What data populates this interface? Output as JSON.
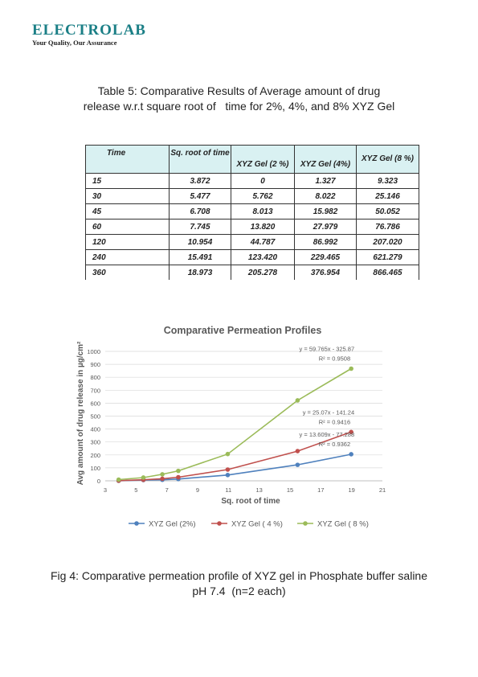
{
  "header": {
    "logo_text": "ELECTROLAB",
    "logo_tagline": "Your Quality, Our Assurance"
  },
  "table_caption": {
    "line1": "Table 5: Comparative Results of Average amount of drug",
    "line2": "release w.r.t square root of   time for 2%, 4%, and 8% XYZ Gel"
  },
  "table": {
    "headers": [
      "Time",
      "Sq. root of time",
      "XYZ Gel (2 %)",
      "XYZ Gel (4%)",
      "XYZ Gel (8 %)"
    ],
    "rows": [
      [
        "15",
        "3.872",
        "0",
        "1.327",
        "9.323"
      ],
      [
        "30",
        "5.477",
        "5.762",
        "8.022",
        "25.146"
      ],
      [
        "45",
        "6.708",
        "8.013",
        "15.982",
        "50.052"
      ],
      [
        "60",
        "7.745",
        "13.820",
        "27.979",
        "76.786"
      ],
      [
        "120",
        "10.954",
        "44.787",
        "86.992",
        "207.020"
      ],
      [
        "240",
        "15.491",
        "123.420",
        "229.465",
        "621.279"
      ],
      [
        "360",
        "18.973",
        "205.278",
        "376.954",
        "866.465"
      ]
    ]
  },
  "chart_data": {
    "type": "line",
    "title": "Comparative Permeation Profiles",
    "xlabel": "Sq. root of time",
    "ylabel": "Avg amount of drug release in µg/cm²",
    "xlim": [
      3,
      21
    ],
    "ylim": [
      0,
      1000
    ],
    "x_ticks": [
      3,
      5,
      7,
      9,
      11,
      13,
      15,
      17,
      19,
      21
    ],
    "y_ticks": [
      0,
      100,
      200,
      300,
      400,
      500,
      600,
      700,
      800,
      900,
      1000
    ],
    "grid": "horizontal",
    "legend_position": "bottom",
    "x": [
      3.872,
      5.477,
      6.708,
      7.745,
      10.954,
      15.491,
      18.973
    ],
    "series": [
      {
        "name": "XYZ Gel (2%)",
        "color": "#4f81bd",
        "values": [
          0,
          5.762,
          8.013,
          13.82,
          44.787,
          123.42,
          205.278
        ],
        "equation": "y = 13.609x - 77.288",
        "r2": "R² = 0.9362"
      },
      {
        "name": "XYZ Gel ( 4 %)",
        "color": "#c0504d",
        "values": [
          1.327,
          8.022,
          15.982,
          27.979,
          86.992,
          229.465,
          376.954
        ],
        "equation": "y = 25.07x - 141.24",
        "r2": "R² = 0.9416"
      },
      {
        "name": "XYZ Gel ( 8 %)",
        "color": "#9bbb59",
        "values": [
          9.323,
          25.146,
          50.052,
          76.786,
          207.02,
          621.279,
          866.465
        ],
        "equation": "y = 59.765x - 325.87",
        "r2": "R² = 0.9508"
      }
    ]
  },
  "figure_caption": {
    "line1": "Fig 4: Comparative permeation profile of XYZ gel in Phosphate buffer saline",
    "line2": "pH 7.4  (n=2 each)"
  }
}
